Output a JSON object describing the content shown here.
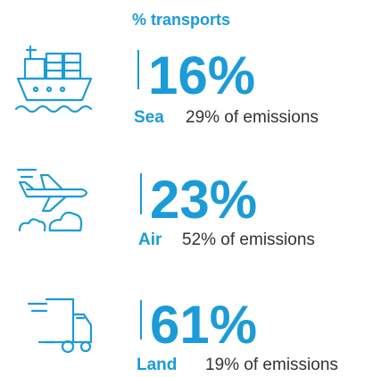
{
  "header": {
    "title": "% transports"
  },
  "items": [
    {
      "share": "16%",
      "mode": "Sea",
      "emissions": "29% of emissions"
    },
    {
      "share": "23%",
      "mode": "Air",
      "emissions": "52% of emissions"
    },
    {
      "share": "61%",
      "mode": "Land",
      "emissions": "19% of emissions"
    }
  ]
}
